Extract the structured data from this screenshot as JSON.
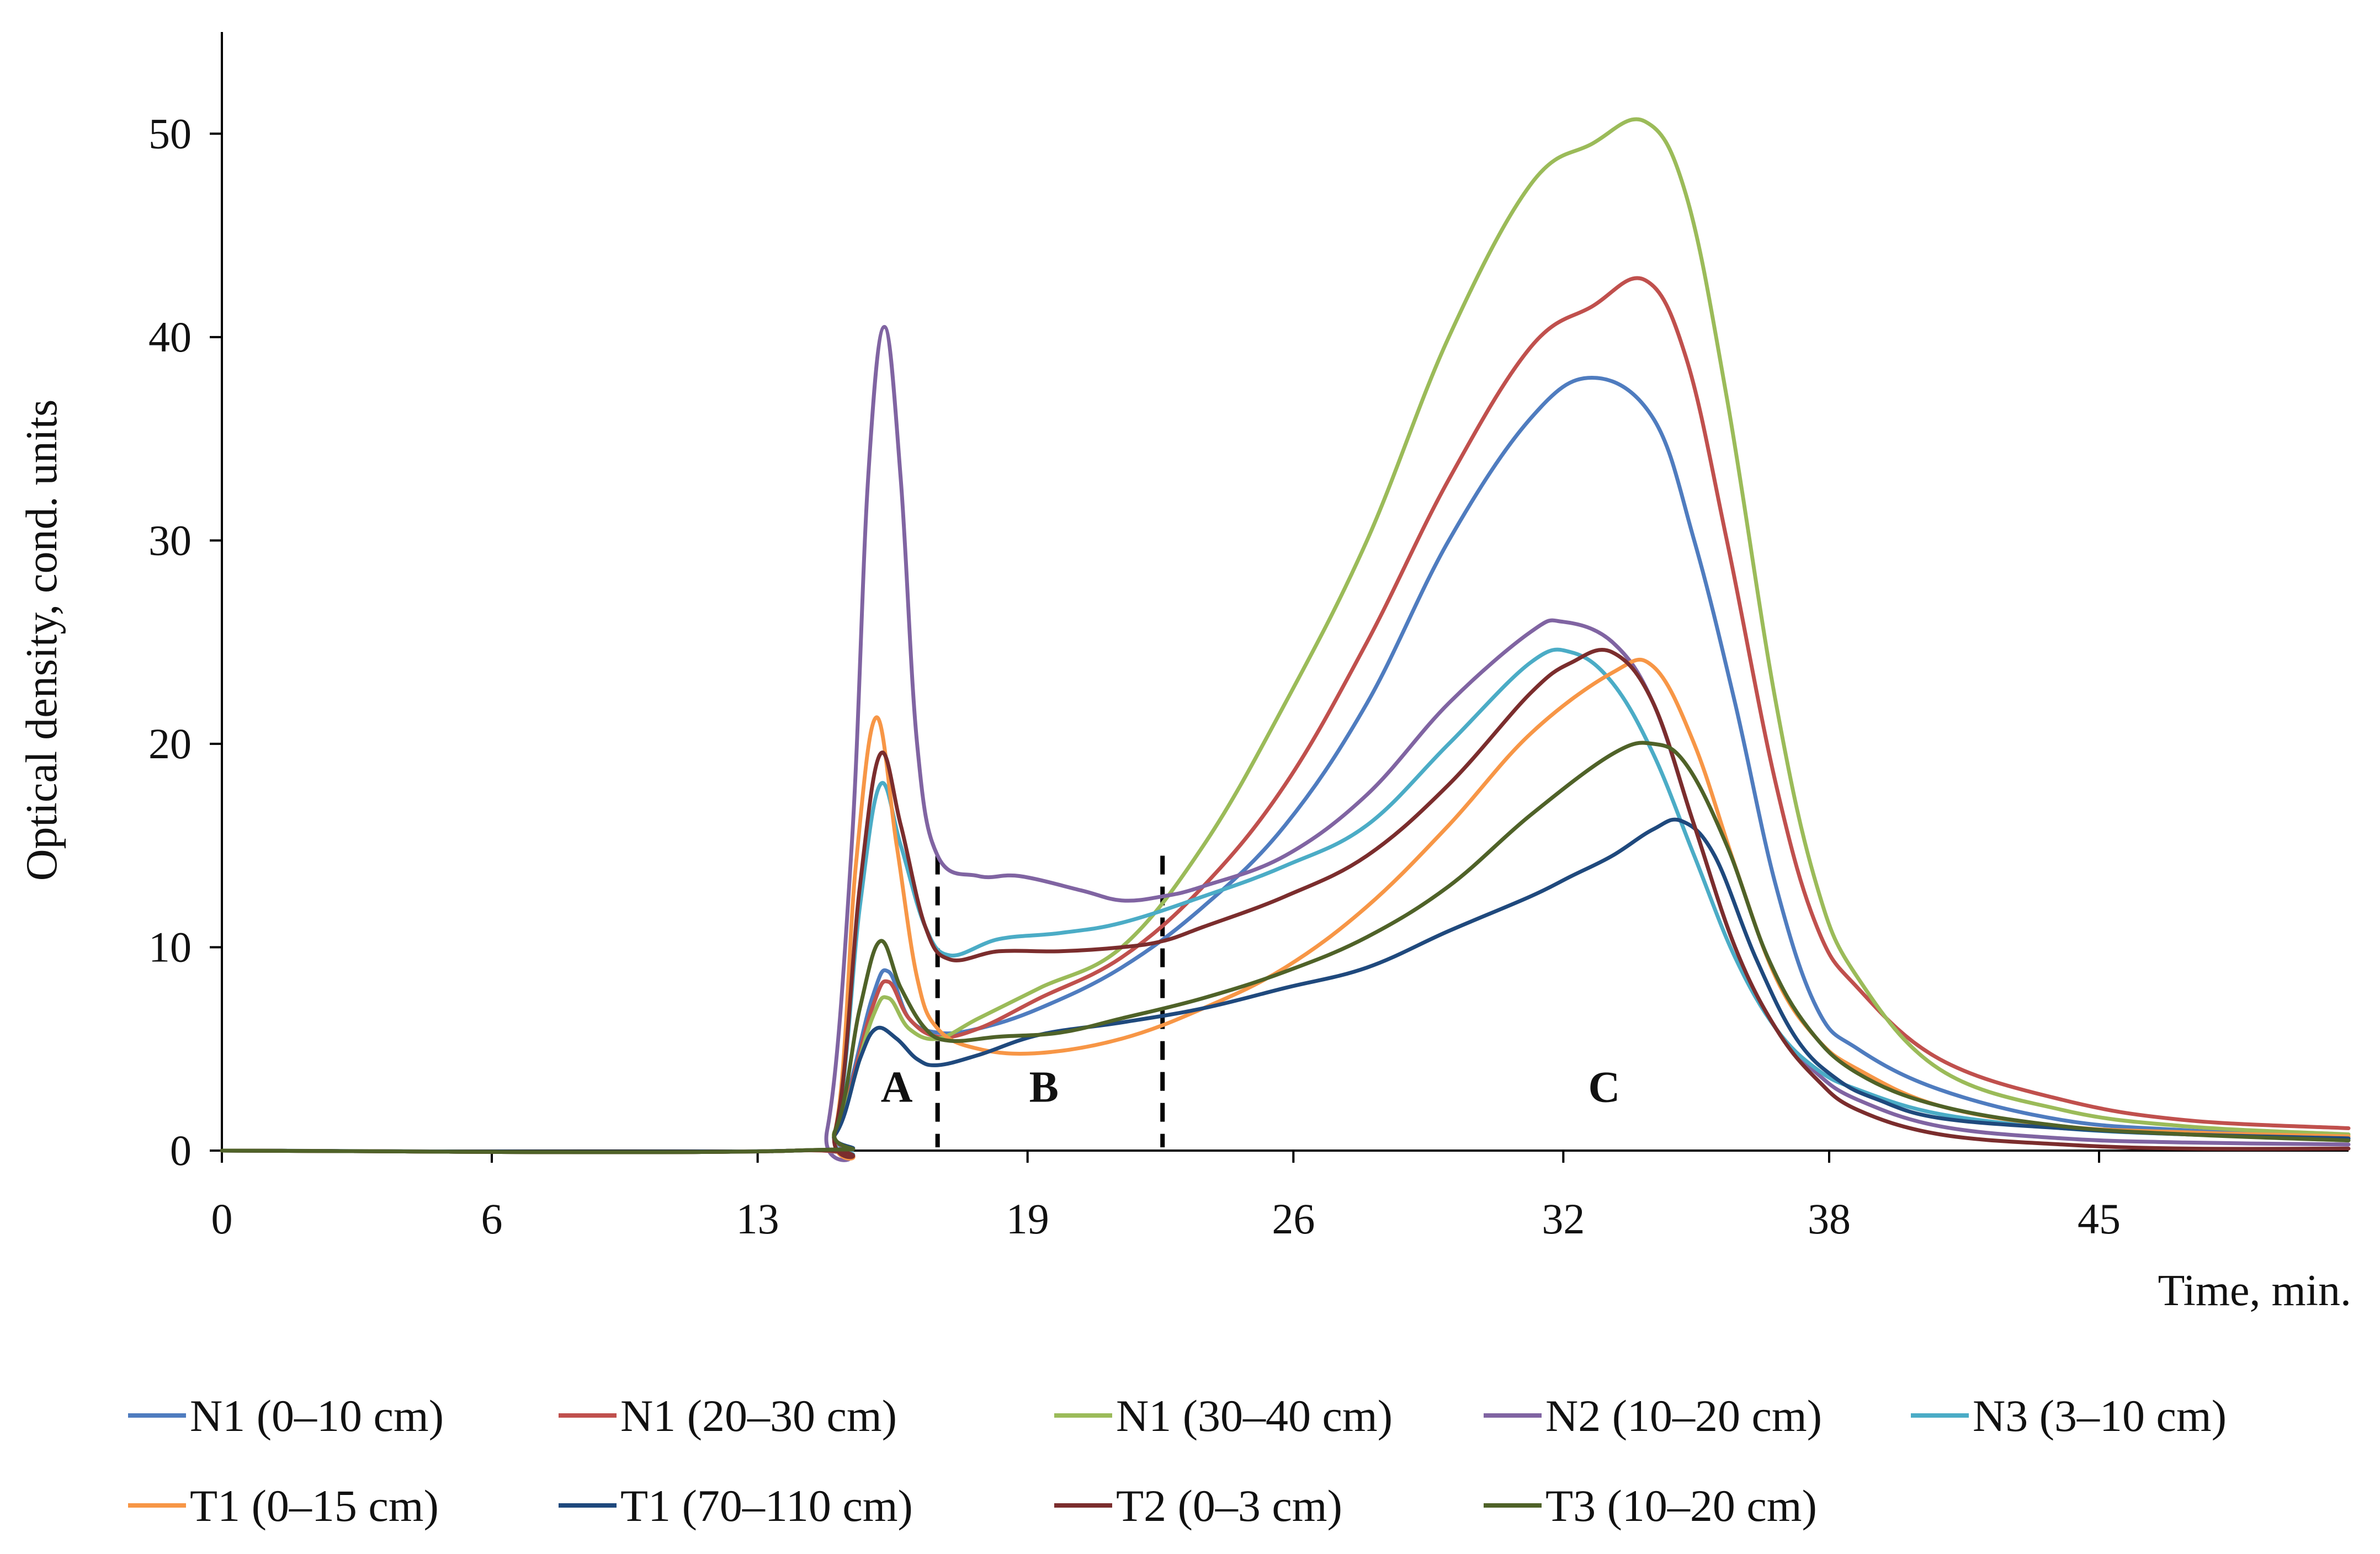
{
  "chart_data": {
    "type": "line",
    "title": "",
    "xlabel": "Time, min.",
    "ylabel": "Optical density, cond. units",
    "xlim": [
      0,
      52
    ],
    "ylim": [
      0,
      55
    ],
    "x_ticks": [
      "0",
      "6",
      "13",
      "19",
      "26",
      "32",
      "38",
      "45"
    ],
    "x_tick_values": [
      0,
      6.6,
      13.1,
      19.7,
      26.2,
      32.8,
      39.3,
      45.9
    ],
    "y_ticks": [
      "0",
      "10",
      "20",
      "30",
      "40",
      "50"
    ],
    "y_tick_values": [
      0,
      10,
      20,
      30,
      40,
      50
    ],
    "grid": false,
    "legend_position": "bottom",
    "dividers_x": [
      17.5,
      23.0
    ],
    "regions": [
      {
        "label": "A",
        "x": 16.5,
        "y": 2.4
      },
      {
        "label": "B",
        "x": 20.1,
        "y": 2.4
      },
      {
        "label": "C",
        "x": 33.8,
        "y": 2.4
      }
    ],
    "series": [
      {
        "name": "N1 (0–10 cm)",
        "color": "#4f7cbf",
        "points": [
          [
            0,
            0
          ],
          [
            14,
            0
          ],
          [
            15,
            1
          ],
          [
            15.9,
            7.5
          ],
          [
            16.3,
            8.8
          ],
          [
            16.8,
            6.5
          ],
          [
            17.5,
            5.8
          ],
          [
            18.5,
            6
          ],
          [
            20,
            7
          ],
          [
            22,
            9
          ],
          [
            24,
            12
          ],
          [
            26,
            16
          ],
          [
            28,
            22
          ],
          [
            30,
            30
          ],
          [
            32,
            36
          ],
          [
            33.5,
            38
          ],
          [
            35,
            36
          ],
          [
            36,
            30
          ],
          [
            37,
            22
          ],
          [
            38,
            13
          ],
          [
            39,
            7
          ],
          [
            40,
            5
          ],
          [
            42,
            3
          ],
          [
            45,
            1.5
          ],
          [
            48,
            1
          ],
          [
            52,
            0.6
          ]
        ]
      },
      {
        "name": "N1 (20–30 cm)",
        "color": "#c0504d",
        "points": [
          [
            0,
            0
          ],
          [
            14,
            0
          ],
          [
            15,
            1
          ],
          [
            15.9,
            7
          ],
          [
            16.3,
            8.3
          ],
          [
            16.8,
            6.5
          ],
          [
            17.5,
            5.6
          ],
          [
            18.5,
            6
          ],
          [
            20,
            7.5
          ],
          [
            22,
            9.5
          ],
          [
            24,
            13
          ],
          [
            26,
            18
          ],
          [
            28,
            25
          ],
          [
            30,
            33
          ],
          [
            32,
            39.5
          ],
          [
            33.5,
            41.5
          ],
          [
            34.8,
            42.8
          ],
          [
            35.8,
            39
          ],
          [
            36.8,
            30
          ],
          [
            38,
            18
          ],
          [
            39,
            11
          ],
          [
            40,
            8
          ],
          [
            42,
            4.5
          ],
          [
            45,
            2.5
          ],
          [
            48,
            1.5
          ],
          [
            52,
            1.1
          ]
        ]
      },
      {
        "name": "N1 (30–40 cm)",
        "color": "#9bbb59",
        "points": [
          [
            0,
            0
          ],
          [
            14,
            0
          ],
          [
            15,
            1
          ],
          [
            15.9,
            6.5
          ],
          [
            16.3,
            7.5
          ],
          [
            16.8,
            6
          ],
          [
            17.5,
            5.5
          ],
          [
            18.5,
            6.5
          ],
          [
            20,
            8
          ],
          [
            22,
            10
          ],
          [
            24,
            15
          ],
          [
            26,
            22
          ],
          [
            28,
            30
          ],
          [
            30,
            40
          ],
          [
            32,
            47.5
          ],
          [
            33.5,
            49.5
          ],
          [
            34.8,
            50.6
          ],
          [
            35.8,
            47
          ],
          [
            36.8,
            37
          ],
          [
            38,
            22
          ],
          [
            39,
            13
          ],
          [
            40,
            8.5
          ],
          [
            42,
            4
          ],
          [
            45,
            2
          ],
          [
            48,
            1.2
          ],
          [
            52,
            0.8
          ]
        ]
      },
      {
        "name": "N2 (10–20 cm)",
        "color": "#8064a2",
        "points": [
          [
            0,
            0
          ],
          [
            14,
            0
          ],
          [
            14.8,
            1
          ],
          [
            15.4,
            15
          ],
          [
            15.8,
            33
          ],
          [
            16.2,
            40.5
          ],
          [
            16.6,
            33
          ],
          [
            17,
            20
          ],
          [
            17.5,
            14.5
          ],
          [
            18.5,
            13.5
          ],
          [
            19.5,
            13.5
          ],
          [
            21,
            12.8
          ],
          [
            22,
            12.3
          ],
          [
            23,
            12.5
          ],
          [
            24,
            13
          ],
          [
            26,
            14.5
          ],
          [
            28,
            17.5
          ],
          [
            30,
            22
          ],
          [
            32,
            25.5
          ],
          [
            32.8,
            26
          ],
          [
            34,
            25
          ],
          [
            35,
            22
          ],
          [
            36,
            16
          ],
          [
            37,
            10
          ],
          [
            38,
            6
          ],
          [
            39,
            3.8
          ],
          [
            40,
            2.5
          ],
          [
            42,
            1.2
          ],
          [
            45,
            0.6
          ],
          [
            48,
            0.4
          ],
          [
            52,
            0.3
          ]
        ]
      },
      {
        "name": "N3 (3–10 cm)",
        "color": "#4bacc6",
        "points": [
          [
            0,
            0
          ],
          [
            14,
            0
          ],
          [
            15,
            1
          ],
          [
            15.6,
            12
          ],
          [
            16.1,
            18
          ],
          [
            16.6,
            15
          ],
          [
            17.2,
            11
          ],
          [
            17.8,
            9.6
          ],
          [
            19,
            10.4
          ],
          [
            20.5,
            10.7
          ],
          [
            22,
            11.2
          ],
          [
            24,
            12.5
          ],
          [
            26,
            14
          ],
          [
            28,
            16
          ],
          [
            30,
            20
          ],
          [
            32,
            24
          ],
          [
            33,
            24.5
          ],
          [
            34,
            23
          ],
          [
            35,
            19.5
          ],
          [
            36,
            14.5
          ],
          [
            37,
            9.5
          ],
          [
            38,
            6
          ],
          [
            39,
            4
          ],
          [
            40,
            3
          ],
          [
            42,
            1.8
          ],
          [
            45,
            1.1
          ],
          [
            48,
            0.8
          ],
          [
            52,
            0.6
          ]
        ]
      },
      {
        "name": "T1 (0–15 cm)",
        "color": "#f79646",
        "points": [
          [
            0,
            0
          ],
          [
            14,
            0
          ],
          [
            15,
            1
          ],
          [
            15.5,
            14
          ],
          [
            16,
            21.3
          ],
          [
            16.5,
            15
          ],
          [
            17,
            8.5
          ],
          [
            17.5,
            6
          ],
          [
            18.5,
            5
          ],
          [
            20,
            4.8
          ],
          [
            22,
            5.5
          ],
          [
            24,
            7
          ],
          [
            26,
            9
          ],
          [
            28,
            12
          ],
          [
            30,
            16
          ],
          [
            32,
            20.5
          ],
          [
            34,
            23.5
          ],
          [
            35,
            23.8
          ],
          [
            36,
            20
          ],
          [
            37,
            14
          ],
          [
            38,
            8.5
          ],
          [
            39,
            5.5
          ],
          [
            40,
            4
          ],
          [
            42,
            2.2
          ],
          [
            45,
            1.2
          ],
          [
            48,
            0.9
          ],
          [
            52,
            0.7
          ]
        ]
      },
      {
        "name": "T1 (70–110 cm)",
        "color": "#1f497d",
        "points": [
          [
            0,
            0
          ],
          [
            14,
            0
          ],
          [
            15,
            0.8
          ],
          [
            15.6,
            4.5
          ],
          [
            16,
            6
          ],
          [
            16.5,
            5.5
          ],
          [
            17,
            4.5
          ],
          [
            17.5,
            4.2
          ],
          [
            18.5,
            4.7
          ],
          [
            20,
            5.7
          ],
          [
            22,
            6.3
          ],
          [
            24,
            7
          ],
          [
            26,
            8
          ],
          [
            28,
            9
          ],
          [
            30,
            10.8
          ],
          [
            32,
            12.5
          ],
          [
            33,
            13.5
          ],
          [
            34,
            14.5
          ],
          [
            35,
            15.8
          ],
          [
            35.7,
            16.2
          ],
          [
            36.5,
            14.5
          ],
          [
            37.5,
            9.5
          ],
          [
            38.5,
            5.5
          ],
          [
            39.5,
            3.5
          ],
          [
            40.5,
            2.5
          ],
          [
            42,
            1.6
          ],
          [
            45,
            1.1
          ],
          [
            48,
            0.8
          ],
          [
            52,
            0.6
          ]
        ]
      },
      {
        "name": "T2 (0–3 cm)",
        "color": "#7b2d2d",
        "points": [
          [
            0,
            0
          ],
          [
            14,
            0
          ],
          [
            15,
            1
          ],
          [
            15.6,
            13
          ],
          [
            16.1,
            19.5
          ],
          [
            16.6,
            16
          ],
          [
            17.2,
            11
          ],
          [
            17.8,
            9.4
          ],
          [
            19,
            9.8
          ],
          [
            20.5,
            9.8
          ],
          [
            22,
            10
          ],
          [
            23,
            10.3
          ],
          [
            24,
            11
          ],
          [
            26,
            12.5
          ],
          [
            28,
            14.5
          ],
          [
            30,
            18
          ],
          [
            32,
            22.5
          ],
          [
            33,
            24
          ],
          [
            34,
            24.5
          ],
          [
            35,
            22
          ],
          [
            36,
            16
          ],
          [
            37,
            10
          ],
          [
            38,
            6
          ],
          [
            39,
            3.5
          ],
          [
            40,
            2
          ],
          [
            42,
            0.8
          ],
          [
            45,
            0.3
          ],
          [
            48,
            0.1
          ],
          [
            52,
            0.1
          ]
        ]
      },
      {
        "name": "T3 (10–20 cm)",
        "color": "#4f6228",
        "points": [
          [
            0,
            0
          ],
          [
            14,
            0
          ],
          [
            15,
            1
          ],
          [
            15.6,
            7
          ],
          [
            16.1,
            10.3
          ],
          [
            16.6,
            8
          ],
          [
            17.2,
            6
          ],
          [
            17.8,
            5.4
          ],
          [
            19,
            5.6
          ],
          [
            20.5,
            5.8
          ],
          [
            22,
            6.5
          ],
          [
            24,
            7.5
          ],
          [
            26,
            8.8
          ],
          [
            28,
            10.5
          ],
          [
            30,
            13
          ],
          [
            32,
            16.5
          ],
          [
            34,
            19.5
          ],
          [
            35,
            20
          ],
          [
            35.8,
            19
          ],
          [
            36.8,
            15
          ],
          [
            37.8,
            9.5
          ],
          [
            38.8,
            6
          ],
          [
            40,
            3.8
          ],
          [
            42,
            2.2
          ],
          [
            45,
            1.2
          ],
          [
            48,
            0.8
          ],
          [
            52,
            0.5
          ]
        ]
      }
    ]
  }
}
